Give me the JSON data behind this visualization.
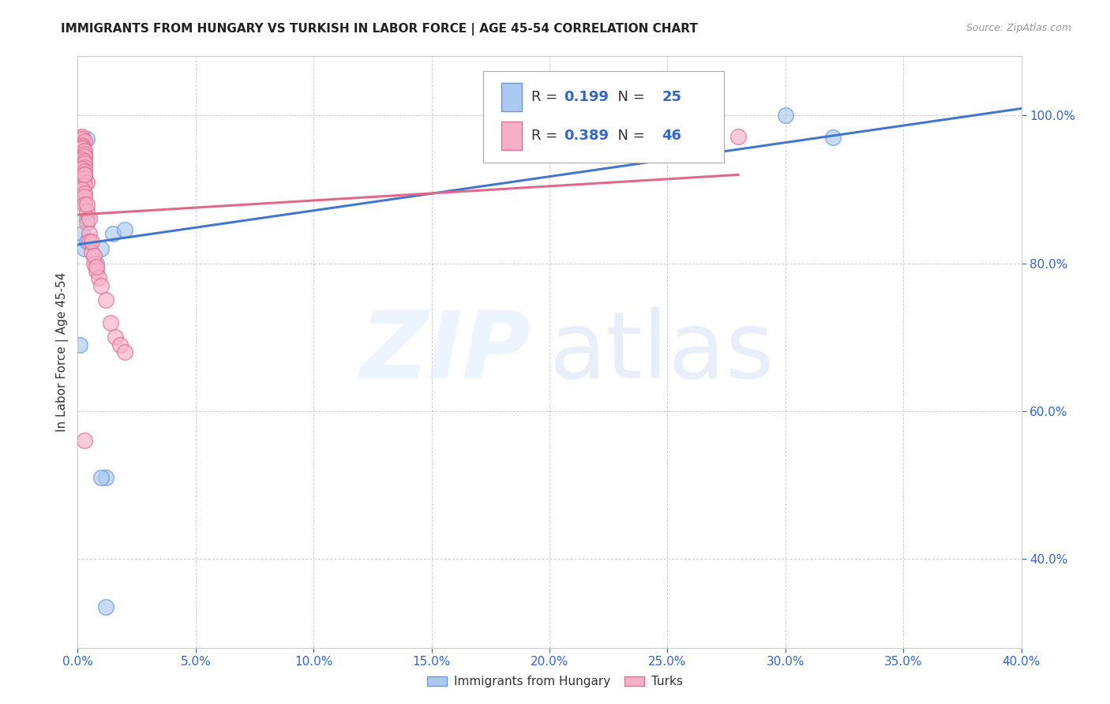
{
  "title": "IMMIGRANTS FROM HUNGARY VS TURKISH IN LABOR FORCE | AGE 45-54 CORRELATION CHART",
  "source": "Source: ZipAtlas.com",
  "ylabel": "In Labor Force | Age 45-54",
  "xlim": [
    0.0,
    0.4
  ],
  "ylim": [
    0.28,
    1.08
  ],
  "hungary_fill": "#aac8f0",
  "hungary_edge": "#6699dd",
  "turks_fill": "#f8b0c8",
  "turks_edge": "#e07090",
  "hungary_line": "#4477cc",
  "turks_line": "#e06888",
  "R_hungary": 0.199,
  "N_hungary": 25,
  "R_turks": 0.389,
  "N_turks": 46,
  "legend_label_hungary": "Immigrants from Hungary",
  "legend_label_turks": "Turks",
  "hungary_x": [
    0.001,
    0.004,
    0.002,
    0.001,
    0.002,
    0.003,
    0.003,
    0.002,
    0.003,
    0.002,
    0.003,
    0.004,
    0.002,
    0.003,
    0.004,
    0.015,
    0.02,
    0.012,
    0.01,
    0.008,
    0.01,
    0.3,
    0.32,
    0.001,
    0.012
  ],
  "hungary_y": [
    0.965,
    0.968,
    0.96,
    0.955,
    0.95,
    0.945,
    0.935,
    0.925,
    0.915,
    0.905,
    0.885,
    0.86,
    0.84,
    0.82,
    0.83,
    0.84,
    0.845,
    0.51,
    0.51,
    0.8,
    0.82,
    1.0,
    0.97,
    0.69,
    0.335
  ],
  "turks_x": [
    0.001,
    0.002,
    0.002,
    0.003,
    0.002,
    0.002,
    0.002,
    0.003,
    0.003,
    0.003,
    0.002,
    0.003,
    0.003,
    0.003,
    0.002,
    0.003,
    0.003,
    0.003,
    0.004,
    0.003,
    0.002,
    0.003,
    0.003,
    0.003,
    0.004,
    0.004,
    0.005,
    0.005,
    0.006,
    0.007,
    0.008,
    0.009,
    0.003,
    0.004,
    0.005,
    0.006,
    0.007,
    0.008,
    0.01,
    0.012,
    0.014,
    0.016,
    0.018,
    0.02,
    0.28,
    0.003
  ],
  "turks_y": [
    0.97,
    0.972,
    0.968,
    0.965,
    0.96,
    0.958,
    0.955,
    0.952,
    0.948,
    0.945,
    0.94,
    0.938,
    0.935,
    0.93,
    0.928,
    0.925,
    0.92,
    0.915,
    0.91,
    0.905,
    0.9,
    0.895,
    0.89,
    0.88,
    0.87,
    0.855,
    0.84,
    0.83,
    0.815,
    0.8,
    0.79,
    0.78,
    0.92,
    0.88,
    0.86,
    0.83,
    0.81,
    0.795,
    0.77,
    0.75,
    0.72,
    0.7,
    0.69,
    0.68,
    0.972,
    0.56
  ],
  "xticks": [
    0.0,
    0.05,
    0.1,
    0.15,
    0.2,
    0.25,
    0.3,
    0.35,
    0.4
  ],
  "yticks": [
    0.4,
    0.6,
    0.8,
    1.0
  ],
  "grid_color": "#cccccc",
  "spine_color": "#cccccc",
  "tick_color": "#3366cc",
  "title_fontsize": 11,
  "source_fontsize": 9,
  "tick_labelsize": 11
}
